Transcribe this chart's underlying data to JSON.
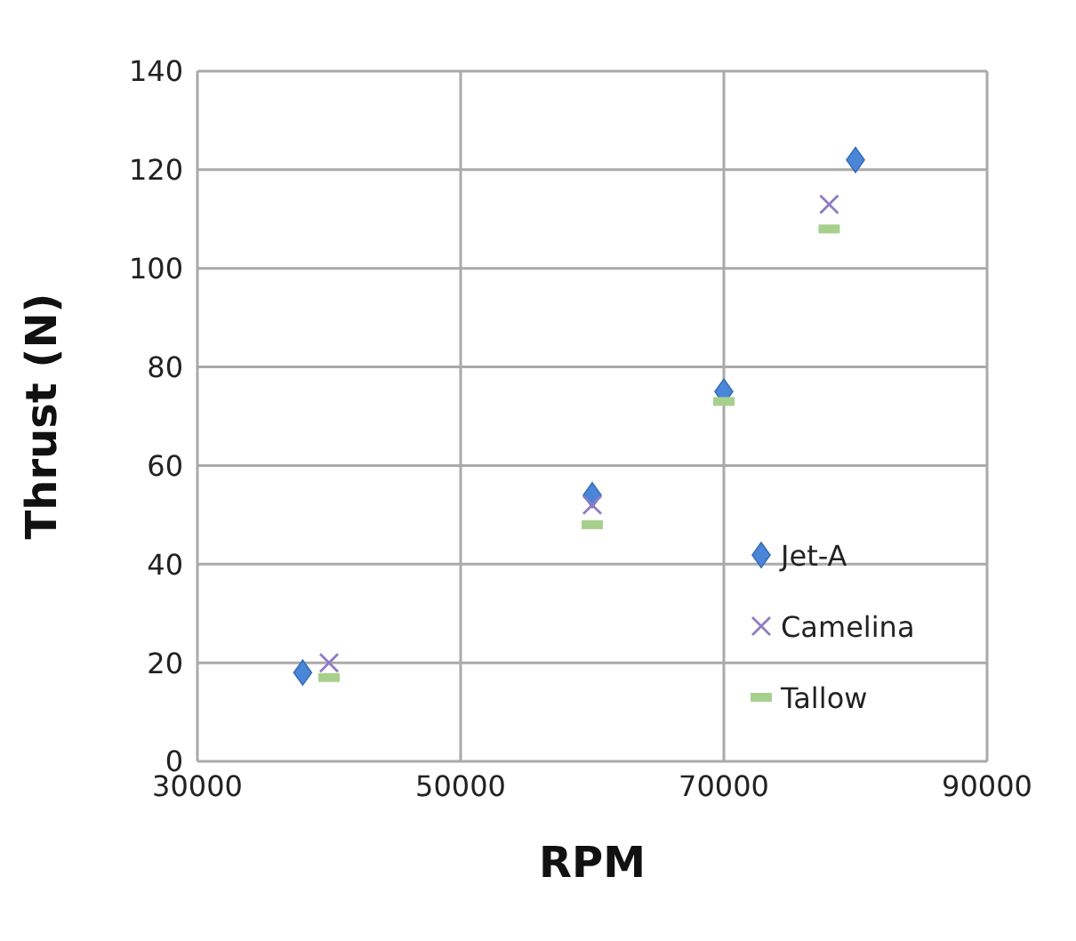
{
  "chart_data": {
    "type": "scatter",
    "xlabel": "RPM",
    "ylabel": "Thrust (N)",
    "xlim": [
      30000,
      90000
    ],
    "xticks": [
      30000,
      50000,
      70000,
      90000
    ],
    "ylim": [
      0,
      140
    ],
    "yticks": [
      0,
      20,
      40,
      60,
      80,
      100,
      120,
      140
    ],
    "grid": true,
    "legend": "bottom right",
    "series": [
      {
        "name": "Jet-A",
        "color": "#4a86d8",
        "marker": "diamond",
        "x": [
          38000,
          60000,
          70000,
          80000
        ],
        "values": [
          18,
          54,
          75,
          122
        ]
      },
      {
        "name": "Camelina",
        "color": "#8e7cc3",
        "marker": "cross",
        "x": [
          40000,
          60000,
          70000,
          78000
        ],
        "values": [
          20,
          52,
          null,
          113
        ]
      },
      {
        "name": "Tallow",
        "color": "#a8d08d",
        "x": [
          40000,
          60000,
          70000,
          78000
        ],
        "values": [
          17,
          48,
          73,
          108
        ]
      }
    ]
  }
}
